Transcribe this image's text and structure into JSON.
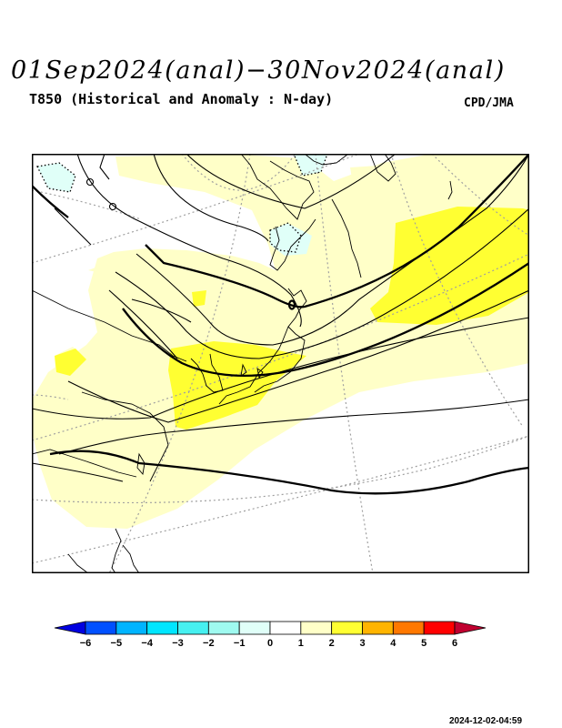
{
  "header": {
    "title": "01Sep2024(anal)−30Nov2024(anal)",
    "subtitle": "T850 (Historical and Anomaly : N-day)",
    "agency": "CPD/JMA"
  },
  "legend": {
    "levels": [
      "-6",
      "-5",
      "-4",
      "-3",
      "-2",
      "-1",
      "0",
      "1",
      "2",
      "3",
      "4",
      "5",
      "6"
    ],
    "colors": [
      "#0000e0",
      "#0050ff",
      "#00b4ff",
      "#00e6ff",
      "#46f0f0",
      "#9ffaf0",
      "#e0fff8",
      "#ffffff",
      "#ffffc8",
      "#ffff32",
      "#ffb400",
      "#ff7800",
      "#ff0000",
      "#c00030"
    ]
  },
  "map_colors": {
    "anomaly_plus_1": "#ffffc8",
    "anomaly_plus_2": "#ffff32",
    "anomaly_minus_1": "#e0fff8",
    "isotherm": "#000000",
    "graticule": "#a0a0a0"
  },
  "footer": {
    "timestamp": "2024-12-02-04:59"
  }
}
